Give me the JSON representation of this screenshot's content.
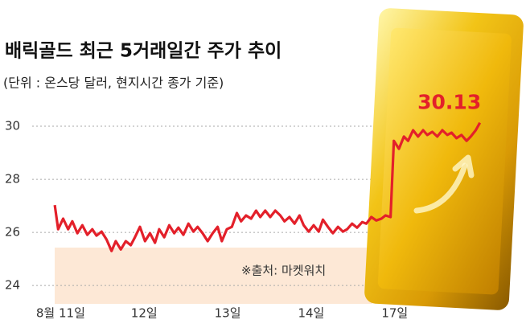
{
  "chart_data": {
    "type": "line",
    "title": "배릭골드 최근 5거래일간 주가 추이",
    "subtitle": "(단위 : 온스당 달러, 현지시간 종가 기준)",
    "source": "※출처: 마켓워치",
    "x": [
      -0.07,
      -0.03,
      0.03,
      0.09,
      0.14,
      0.2,
      0.26,
      0.32,
      0.38,
      0.43,
      0.49,
      0.55,
      0.61,
      0.66,
      0.72,
      0.78,
      0.84,
      0.89,
      0.95,
      1.01,
      1.07,
      1.13,
      1.18,
      1.24,
      1.3,
      1.36,
      1.41,
      1.47,
      1.53,
      1.59,
      1.64,
      1.7,
      1.76,
      1.82,
      1.88,
      1.93,
      1.99,
      2.05,
      2.11,
      2.16,
      2.22,
      2.28,
      2.34,
      2.39,
      2.45,
      2.51,
      2.57,
      2.63,
      2.68,
      2.74,
      2.8,
      2.86,
      2.91,
      2.97,
      3.03,
      3.09,
      3.14,
      3.2,
      3.26,
      3.32,
      3.38,
      3.43,
      3.49,
      3.55,
      3.61,
      3.66,
      3.72,
      3.78,
      3.84,
      3.89,
      3.95,
      3.99,
      4.05,
      4.11,
      4.16,
      4.22,
      4.28,
      4.34,
      4.39,
      4.45,
      4.51,
      4.57,
      4.63,
      4.68,
      4.74,
      4.8,
      4.86,
      4.91,
      4.97,
      5.02
    ],
    "values": [
      27.03,
      26.12,
      26.52,
      26.12,
      26.42,
      25.97,
      26.27,
      25.91,
      26.12,
      25.88,
      26.03,
      25.73,
      25.3,
      25.67,
      25.36,
      25.67,
      25.52,
      25.82,
      26.21,
      25.67,
      25.97,
      25.61,
      26.12,
      25.82,
      26.27,
      25.97,
      26.18,
      25.91,
      26.33,
      26.03,
      26.21,
      25.97,
      25.67,
      25.97,
      26.21,
      25.67,
      26.12,
      26.21,
      26.73,
      26.42,
      26.64,
      26.52,
      26.82,
      26.58,
      26.82,
      26.58,
      26.82,
      26.64,
      26.42,
      26.58,
      26.33,
      26.64,
      26.27,
      26.03,
      26.27,
      26.03,
      26.48,
      26.21,
      25.97,
      26.21,
      26.03,
      26.12,
      26.33,
      26.18,
      26.39,
      26.33,
      26.58,
      26.45,
      26.52,
      26.64,
      26.58,
      29.45,
      29.15,
      29.61,
      29.45,
      29.85,
      29.61,
      29.85,
      29.67,
      29.79,
      29.61,
      29.85,
      29.67,
      29.76,
      29.55,
      29.67,
      29.45,
      29.61,
      29.85,
      30.13
    ],
    "color": "#e3202a",
    "xlim": [
      -0.1,
      5.1
    ],
    "xticks": [
      {
        "value": 0,
        "label": "8월 11일"
      },
      {
        "value": 1,
        "label": "12일"
      },
      {
        "value": 2,
        "label": "13일"
      },
      {
        "value": 3,
        "label": "14일"
      },
      {
        "value": 4,
        "label": "17일"
      }
    ],
    "ylim": [
      23.4,
      31
    ],
    "yticks": [
      24,
      26,
      28,
      30
    ],
    "grid": true
  }
}
